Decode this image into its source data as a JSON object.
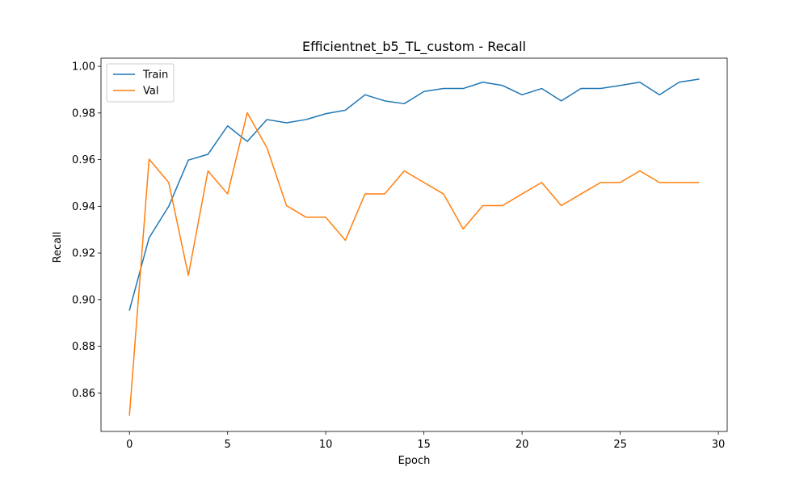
{
  "chart_data": {
    "type": "line",
    "title": "Efficientnet_b5_TL_custom - Recall",
    "xlabel": "Epoch",
    "ylabel": "Recall",
    "xlim": [
      -1.45,
      30.45
    ],
    "ylim": [
      0.8435,
      1.0035
    ],
    "xticks": [
      0,
      5,
      10,
      15,
      20,
      25,
      30
    ],
    "yticks": [
      0.86,
      0.88,
      0.9,
      0.92,
      0.94,
      0.96,
      0.98,
      1.0
    ],
    "ytick_labels": [
      "0.86",
      "0.88",
      "0.90",
      "0.92",
      "0.94",
      "0.96",
      "0.98",
      "1.00"
    ],
    "grid": false,
    "legend_position": "upper left",
    "x": [
      0,
      1,
      2,
      3,
      4,
      5,
      6,
      7,
      8,
      9,
      10,
      11,
      12,
      13,
      14,
      15,
      16,
      17,
      18,
      19,
      20,
      21,
      22,
      23,
      24,
      25,
      26,
      27,
      28,
      29
    ],
    "series": [
      {
        "name": "Train",
        "color": "#1f77b4",
        "values": [
          0.8955,
          0.9265,
          0.94,
          0.9598,
          0.9623,
          0.9745,
          0.9678,
          0.9772,
          0.9758,
          0.9772,
          0.9797,
          0.9812,
          0.9878,
          0.9852,
          0.984,
          0.9892,
          0.9905,
          0.9905,
          0.9932,
          0.9918,
          0.9878,
          0.9905,
          0.9852,
          0.9905,
          0.9905,
          0.9918,
          0.9932,
          0.9878,
          0.9932,
          0.9945
        ]
      },
      {
        "name": "Val",
        "color": "#ff7f0e",
        "values": [
          0.8505,
          0.9602,
          0.9502,
          0.9104,
          0.9552,
          0.9453,
          0.9801,
          0.9652,
          0.9403,
          0.9353,
          0.9353,
          0.9254,
          0.9453,
          0.9453,
          0.9552,
          0.9502,
          0.9453,
          0.9303,
          0.9403,
          0.9403,
          0.9453,
          0.9502,
          0.9403,
          0.9453,
          0.9502,
          0.9502,
          0.9552,
          0.9502,
          0.9502,
          0.9502
        ]
      }
    ]
  }
}
